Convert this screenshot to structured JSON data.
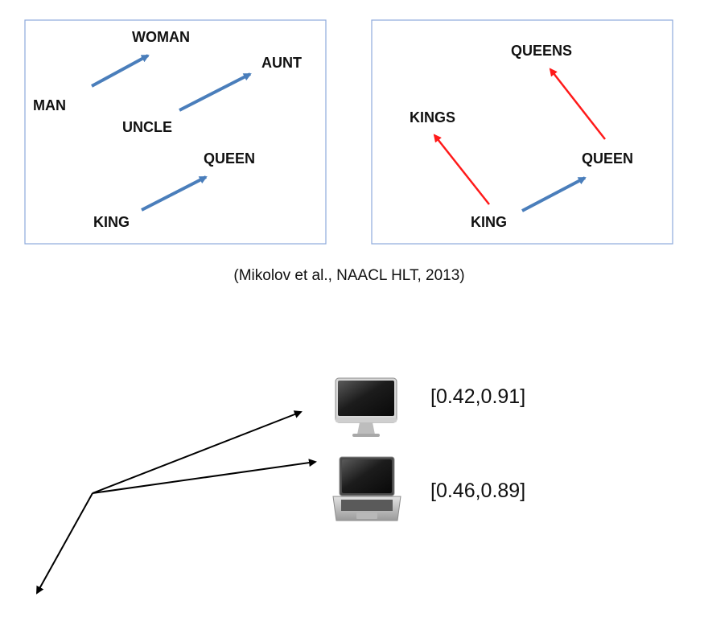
{
  "colors": {
    "blue_arrow": "#4a7ebb",
    "red_arrow": "#ff1a1a",
    "black_arrow": "#000000",
    "panel_border": "#8eaadb"
  },
  "left_panel": {
    "words": {
      "man": "MAN",
      "woman": "WOMAN",
      "uncle": "UNCLE",
      "aunt": "AUNT",
      "king": "KING",
      "queen": "QUEEN"
    }
  },
  "right_panel": {
    "words": {
      "queens": "QUEENS",
      "kings": "KINGS",
      "queen": "QUEEN",
      "king": "KING"
    }
  },
  "caption": "(Mikolov et al., NAACL HLT, 2013)",
  "vectors": {
    "desktop": {
      "icon": "desktop-computer-icon",
      "label": "[0.42,0.91]"
    },
    "laptop": {
      "icon": "laptop-computer-icon",
      "label": "[0.46,0.89]"
    }
  }
}
